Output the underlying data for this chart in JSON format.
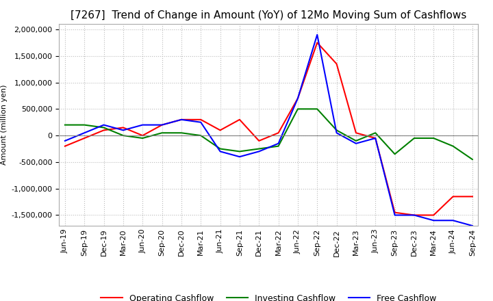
{
  "title": "[7267]  Trend of Change in Amount (YoY) of 12Mo Moving Sum of Cashflows",
  "ylabel": "Amount (million yen)",
  "ylim": [
    -1700000,
    2100000
  ],
  "yticks": [
    -1500000,
    -1000000,
    -500000,
    0,
    500000,
    1000000,
    1500000,
    2000000
  ],
  "x_labels": [
    "Jun-19",
    "Sep-19",
    "Dec-19",
    "Mar-20",
    "Jun-20",
    "Sep-20",
    "Dec-20",
    "Mar-21",
    "Jun-21",
    "Sep-21",
    "Dec-21",
    "Mar-22",
    "Jun-22",
    "Sep-22",
    "Dec-22",
    "Mar-23",
    "Jun-23",
    "Sep-23",
    "Dec-23",
    "Mar-24",
    "Jun-24",
    "Sep-24"
  ],
  "operating": [
    -200000,
    -50000,
    100000,
    150000,
    0,
    200000,
    300000,
    300000,
    100000,
    300000,
    -100000,
    50000,
    700000,
    1750000,
    1350000,
    50000,
    -50000,
    -1450000,
    -1500000,
    -1500000,
    -1150000,
    -1150000
  ],
  "investing": [
    200000,
    200000,
    150000,
    0,
    -50000,
    50000,
    50000,
    0,
    -250000,
    -300000,
    -250000,
    -200000,
    500000,
    500000,
    100000,
    -100000,
    50000,
    -350000,
    -50000,
    -50000,
    -200000,
    -450000
  ],
  "free": [
    -100000,
    50000,
    200000,
    100000,
    200000,
    200000,
    300000,
    250000,
    -300000,
    -400000,
    -300000,
    -150000,
    700000,
    1900000,
    50000,
    -150000,
    -50000,
    -1500000,
    -1500000,
    -1600000,
    -1600000,
    -1700000
  ],
  "operating_color": "#FF0000",
  "investing_color": "#008000",
  "free_color": "#0000FF",
  "background_color": "#FFFFFF",
  "grid_color": "#BBBBBB",
  "title_fontsize": 11,
  "axis_fontsize": 8,
  "legend_fontsize": 9
}
